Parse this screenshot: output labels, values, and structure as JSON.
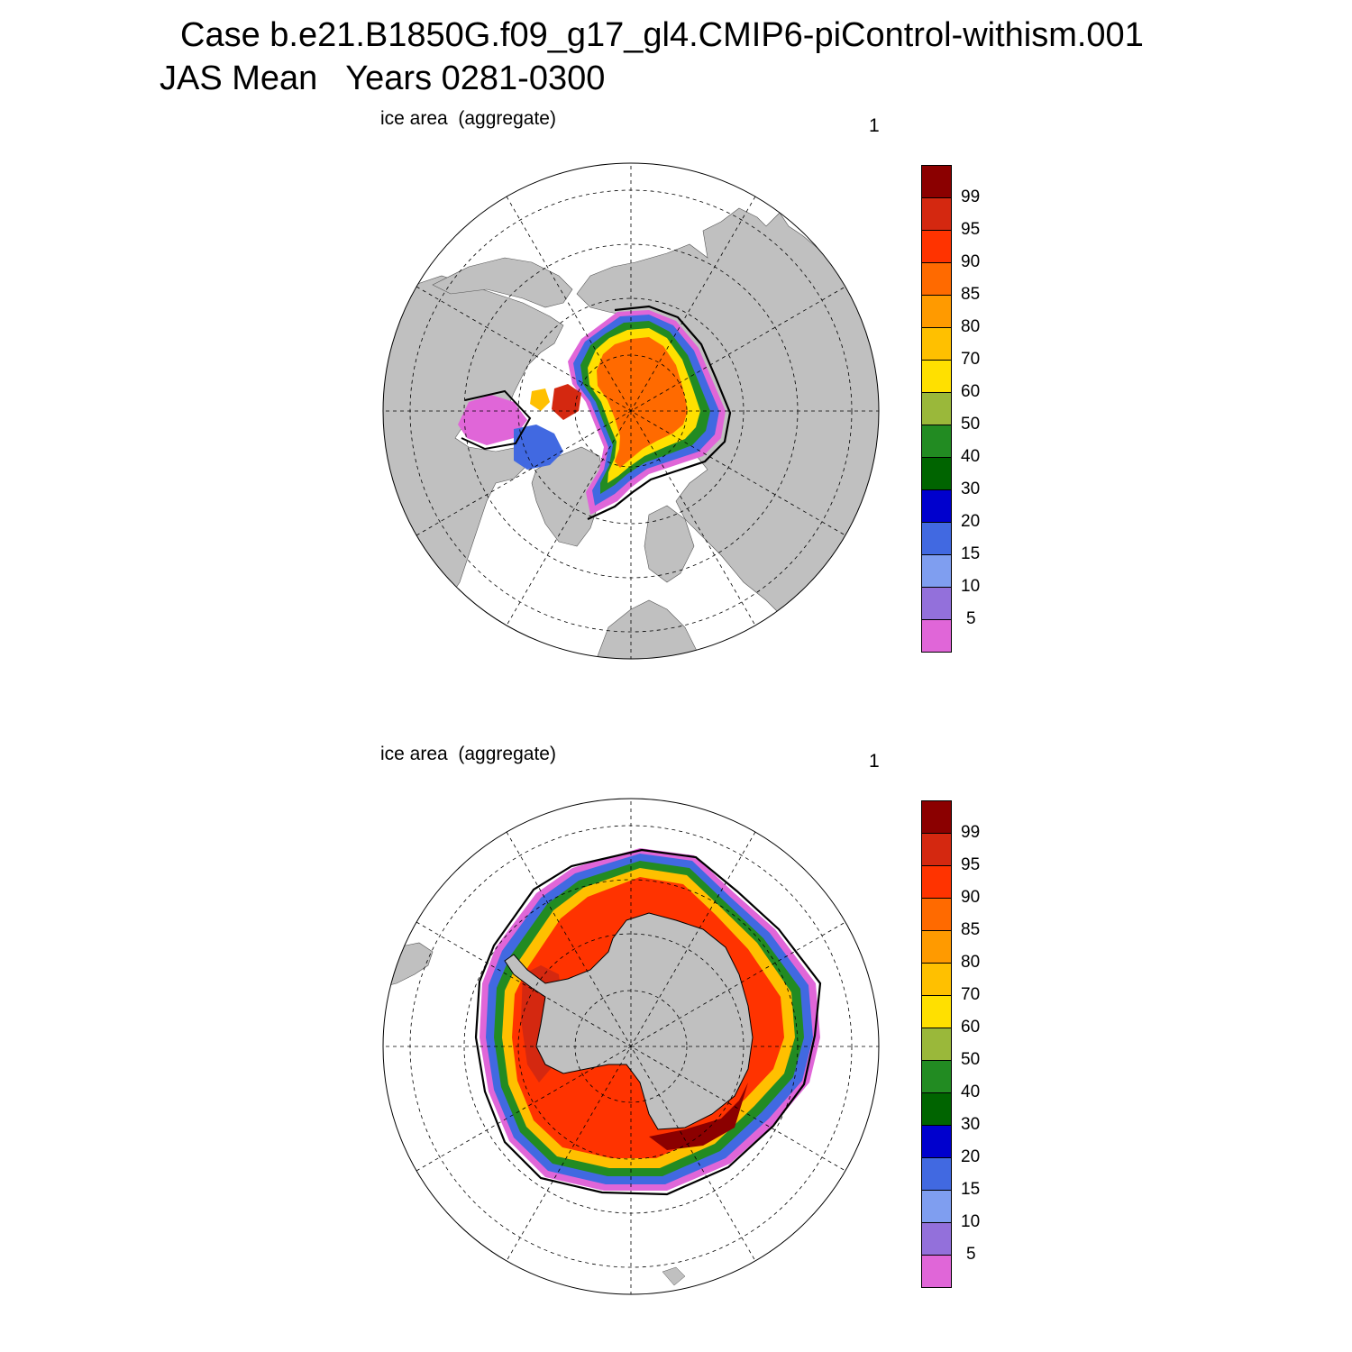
{
  "figure": {
    "title_line1": "Case b.e21.B1850G.f09_g17_gl4.CMIP6-piControl-withism.001",
    "title_line2": "JAS Mean   Years 0281-0300"
  },
  "panels": [
    {
      "hemisphere": "north",
      "label": "ice area  (aggregate)",
      "number": "1"
    },
    {
      "hemisphere": "south",
      "label": "ice area  (aggregate)",
      "number": "1"
    }
  ],
  "colorbar": {
    "colors_bottom_to_top": [
      "#e066d8",
      "#9370db",
      "#7f9ef0",
      "#4169e1",
      "#0000cd",
      "#006400",
      "#228b22",
      "#9ab83a",
      "#ffe000",
      "#ffc000",
      "#ff9a00",
      "#ff6a00",
      "#ff3300",
      "#d42810",
      "#8b0000"
    ],
    "labels_bottom_to_top": [
      "5",
      "10",
      "15",
      "20",
      "30",
      "40",
      "50",
      "60",
      "70",
      "80",
      "85",
      "90",
      "95",
      "99"
    ]
  },
  "colors": {
    "land": "#c0c0c0",
    "ocean": "#ffffff",
    "contour": "#000000"
  }
}
